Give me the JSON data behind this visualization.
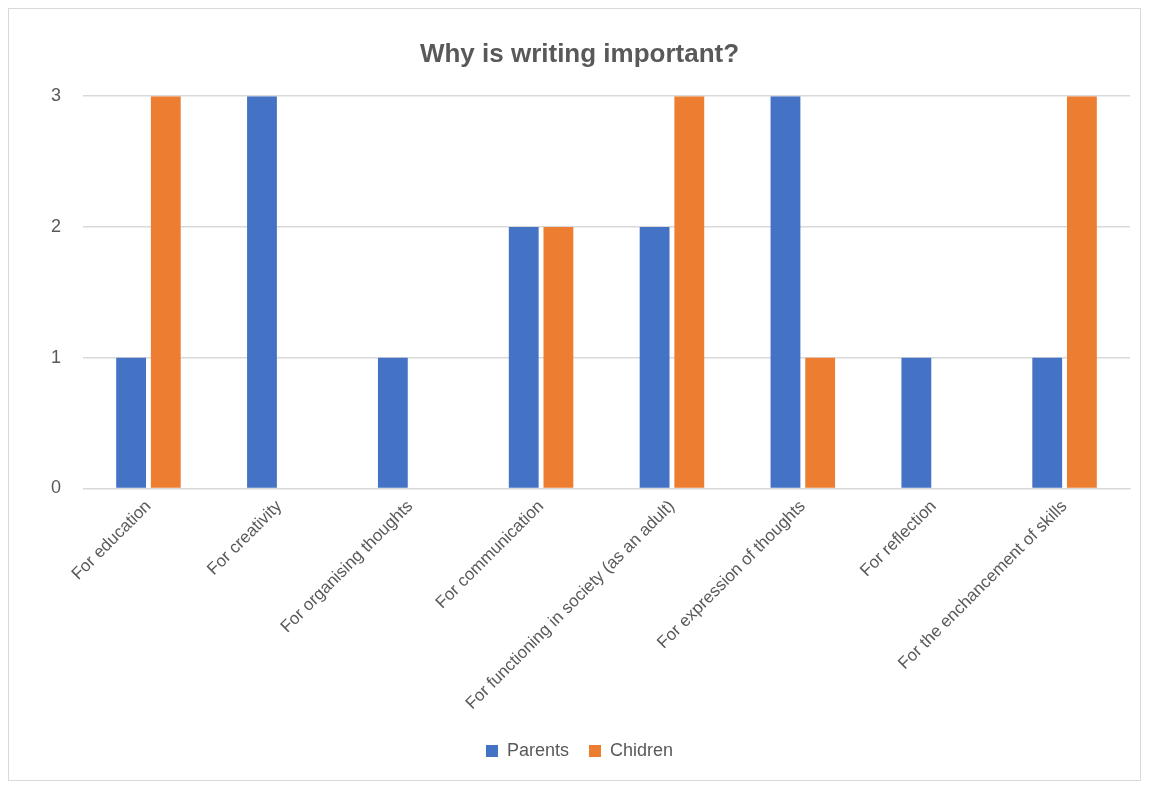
{
  "chart_data": {
    "type": "bar",
    "title": "Why is writing important?",
    "categories": [
      "For education",
      "For creativity",
      "For organising thoughts",
      "For communication",
      "For functioning in society (as an adult)",
      "For expression of thoughts",
      "For reflection",
      "For the enchancement of skills"
    ],
    "series": [
      {
        "name": "Parents",
        "color": "#4472c4",
        "values": [
          1,
          3,
          1,
          2,
          2,
          3,
          1,
          1
        ]
      },
      {
        "name": "Chidren",
        "color": "#ed7d31",
        "values": [
          3,
          0,
          0,
          2,
          3,
          1,
          0,
          3
        ]
      }
    ],
    "ylim": [
      0,
      3
    ],
    "yticks": [
      0,
      1,
      2,
      3
    ],
    "grid": "y",
    "legend": "bottom"
  }
}
